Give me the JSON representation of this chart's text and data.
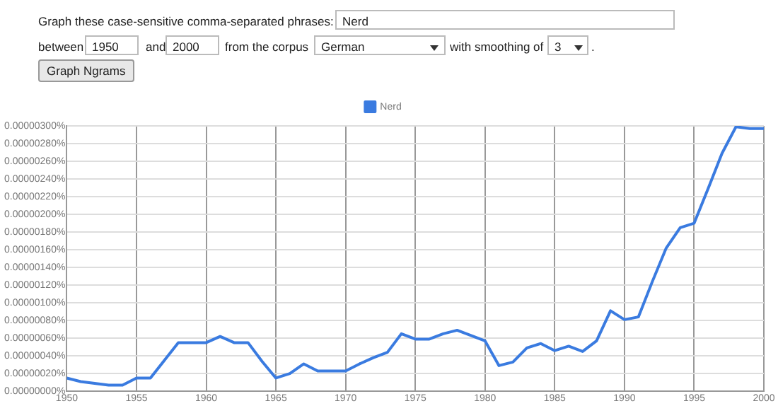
{
  "chart_data": {
    "type": "line",
    "annotations": [
      "Graph these case-sensitive comma-separated phrases:",
      "Nerd",
      "between",
      "1950",
      "and",
      "2000",
      "from the corpus",
      "German",
      "with smoothing of",
      "3",
      ".",
      "Graph Ngrams"
    ],
    "x": [
      1950,
      1951,
      1952,
      1953,
      1954,
      1955,
      1956,
      1957,
      1958,
      1959,
      1960,
      1961,
      1962,
      1963,
      1964,
      1965,
      1966,
      1967,
      1968,
      1969,
      1970,
      1971,
      1972,
      1973,
      1974,
      1975,
      1976,
      1977,
      1978,
      1979,
      1980,
      1981,
      1982,
      1983,
      1984,
      1985,
      1986,
      1987,
      1988,
      1989,
      1990,
      1991,
      1992,
      1993,
      1994,
      1995,
      1996,
      1997,
      1998,
      1999,
      2000
    ],
    "series": [
      {
        "name": "Nerd",
        "color": "#3a7be0",
        "values": [
          1.5e-07,
          1.1e-07,
          9e-08,
          7e-08,
          7e-08,
          1.5e-07,
          1.5e-07,
          3.5e-07,
          5.5e-07,
          5.5e-07,
          5.5e-07,
          6.2e-07,
          5.5e-07,
          5.5e-07,
          3.4e-07,
          1.5e-07,
          2e-07,
          3.1e-07,
          2.3e-07,
          2.3e-07,
          2.3e-07,
          3.1e-07,
          3.8e-07,
          4.4e-07,
          6.5e-07,
          5.9e-07,
          5.9e-07,
          6.5e-07,
          6.9e-07,
          6.3e-07,
          5.7e-07,
          2.9e-07,
          3.3e-07,
          4.9e-07,
          5.4e-07,
          4.6e-07,
          5.1e-07,
          4.5e-07,
          5.7e-07,
          9.1e-07,
          8.1e-07,
          8.4e-07,
          1.24e-06,
          1.62e-06,
          1.85e-06,
          1.9e-06,
          2.29e-06,
          2.69e-06,
          2.99e-06,
          2.97e-06,
          2.97e-06
        ]
      }
    ],
    "xlim": [
      1950,
      2000
    ],
    "xticks": [
      1950,
      1955,
      1960,
      1965,
      1970,
      1975,
      1980,
      1985,
      1990,
      1995,
      2000
    ],
    "ylim": [
      0,
      3e-06
    ],
    "yticks": [
      {
        "value": 0,
        "label": "0.00000000%"
      },
      {
        "value": 2e-07,
        "label": "0.00000020%"
      },
      {
        "value": 4e-07,
        "label": "0.00000040%"
      },
      {
        "value": 6e-07,
        "label": "0.00000060%"
      },
      {
        "value": 8e-07,
        "label": "0.00000080%"
      },
      {
        "value": 1e-06,
        "label": "0.00000100%"
      },
      {
        "value": 1.2e-06,
        "label": "0.00000120%"
      },
      {
        "value": 1.4e-06,
        "label": "0.00000140%"
      },
      {
        "value": 1.6e-06,
        "label": "0.00000160%"
      },
      {
        "value": 1.8e-06,
        "label": "0.00000180%"
      },
      {
        "value": 2e-06,
        "label": "0.00000200%"
      },
      {
        "value": 2.2e-06,
        "label": "0.00000220%"
      },
      {
        "value": 2.4e-06,
        "label": "0.00000240%"
      },
      {
        "value": 2.6e-06,
        "label": "0.00000260%"
      },
      {
        "value": 2.8e-06,
        "label": "0.00000280%"
      },
      {
        "value": 3e-06,
        "label": "0.00000300%"
      }
    ],
    "grid": true,
    "legend": "top",
    "marker": "none",
    "line_style": "solid"
  }
}
